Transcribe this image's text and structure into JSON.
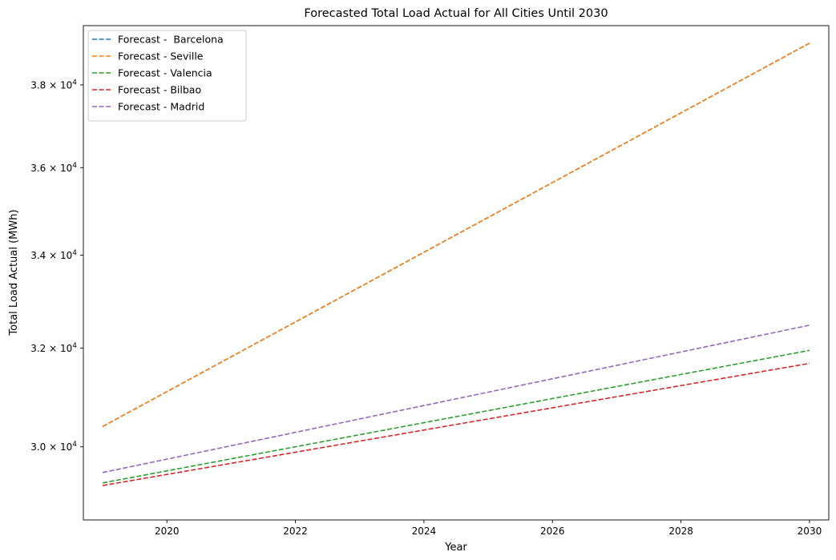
{
  "chart_data": {
    "type": "line",
    "title": "Forecasted Total Load Actual for All Cities Until 2030",
    "xlabel": "Year",
    "ylabel": "Total Load Actual (MWh)",
    "xlim": [
      2018.7,
      2030.3
    ],
    "ylim": [
      28600,
      39500
    ],
    "y_scale": "log",
    "grid": false,
    "legend_position": "top-left",
    "x_ticks": [
      2020,
      2022,
      2024,
      2026,
      2028,
      2030
    ],
    "x_tick_labels": [
      "2020",
      "2022",
      "2024",
      "2026",
      "2028",
      "2030"
    ],
    "y_ticks": [
      30000,
      32000,
      34000,
      36000,
      38000
    ],
    "y_tick_labels": [
      {
        "mantissa": "3.0",
        "base": "10",
        "exp": "4"
      },
      {
        "mantissa": "3.2",
        "base": "10",
        "exp": "4"
      },
      {
        "mantissa": "3.4",
        "base": "10",
        "exp": "4"
      },
      {
        "mantissa": "3.6",
        "base": "10",
        "exp": "4"
      },
      {
        "mantissa": "3.8",
        "base": "10",
        "exp": "4"
      }
    ],
    "series": [
      {
        "name": "Forecast -  Barcelona",
        "color": "#1f77b4",
        "style": "dashed",
        "x": [
          2019,
          2030
        ],
        "values": [
          30400,
          39050
        ]
      },
      {
        "name": "Forecast - Seville",
        "color": "#ff7f0e",
        "style": "dashed",
        "x": [
          2019,
          2030
        ],
        "values": [
          30400,
          39050
        ]
      },
      {
        "name": "Forecast - Valencia",
        "color": "#2ca02c",
        "style": "dashed",
        "x": [
          2019,
          2030
        ],
        "values": [
          29300,
          31950
        ]
      },
      {
        "name": "Forecast - Bilbao",
        "color": "#d62728",
        "style": "dashed",
        "x": [
          2019,
          2030
        ],
        "values": [
          29250,
          31680
        ]
      },
      {
        "name": "Forecast - Madrid",
        "color": "#9467bd",
        "style": "dashed",
        "x": [
          2019,
          2030
        ],
        "values": [
          29500,
          32480
        ]
      }
    ]
  }
}
